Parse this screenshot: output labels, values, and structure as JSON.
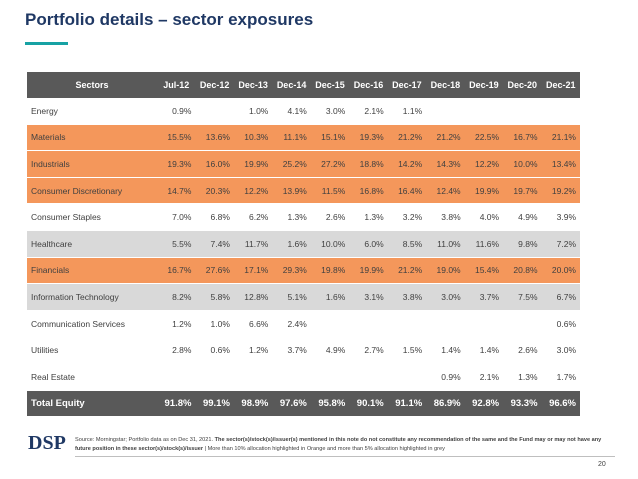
{
  "header": {
    "title": "Portfolio details – sector exposures"
  },
  "table": {
    "columns": [
      "Sectors",
      "Jul-12",
      "Dec-12",
      "Dec-13",
      "Dec-14",
      "Dec-15",
      "Dec-16",
      "Dec-17",
      "Dec-18",
      "Dec-19",
      "Dec-20",
      "Dec-21"
    ],
    "rows": [
      {
        "label": "Energy",
        "fill": "#ffffff",
        "values": [
          "0.9%",
          null,
          "1.0%",
          "4.1%",
          "3.0%",
          "2.1%",
          "1.1%",
          null,
          null,
          null,
          null
        ]
      },
      {
        "label": "Materials",
        "fill": "#f4975b",
        "values": [
          "15.5%",
          "13.6%",
          "10.3%",
          "11.1%",
          "15.1%",
          "19.3%",
          "21.2%",
          "21.2%",
          "22.5%",
          "16.7%",
          "21.1%"
        ]
      },
      {
        "label": "Industrials",
        "fill": "#f4975b",
        "values": [
          "19.3%",
          "16.0%",
          "19.9%",
          "25.2%",
          "27.2%",
          "18.8%",
          "14.2%",
          "14.3%",
          "12.2%",
          "10.0%",
          "13.4%"
        ]
      },
      {
        "label": "Consumer Discretionary",
        "fill": "#f4975b",
        "values": [
          "14.7%",
          "20.3%",
          "12.2%",
          "13.9%",
          "11.5%",
          "16.8%",
          "16.4%",
          "12.4%",
          "19.9%",
          "19.7%",
          "19.2%"
        ]
      },
      {
        "label": "Consumer Staples",
        "fill": "#ffffff",
        "values": [
          "7.0%",
          "6.8%",
          "6.2%",
          "1.3%",
          "2.6%",
          "1.3%",
          "3.2%",
          "3.8%",
          "4.0%",
          "4.9%",
          "3.9%"
        ]
      },
      {
        "label": "Healthcare",
        "fill": "#d9d9d9",
        "values": [
          "5.5%",
          "7.4%",
          "11.7%",
          "1.6%",
          "10.0%",
          "6.0%",
          "8.5%",
          "11.0%",
          "11.6%",
          "9.8%",
          "7.2%"
        ]
      },
      {
        "label": "Financials",
        "fill": "#f4975b",
        "values": [
          "16.7%",
          "27.6%",
          "17.1%",
          "29.3%",
          "19.8%",
          "19.9%",
          "21.2%",
          "19.0%",
          "15.4%",
          "20.8%",
          "20.0%"
        ]
      },
      {
        "label": "Information Technology",
        "fill": "#d9d9d9",
        "values": [
          "8.2%",
          "5.8%",
          "12.8%",
          "5.1%",
          "1.6%",
          "3.1%",
          "3.8%",
          "3.0%",
          "3.7%",
          "7.5%",
          "6.7%"
        ]
      },
      {
        "label": "Communication Services",
        "fill": "#ffffff",
        "values": [
          "1.2%",
          "1.0%",
          "6.6%",
          "2.4%",
          null,
          null,
          null,
          null,
          null,
          null,
          "0.6%"
        ]
      },
      {
        "label": "Utilities",
        "fill": "#ffffff",
        "values": [
          "2.8%",
          "0.6%",
          "1.2%",
          "3.7%",
          "4.9%",
          "2.7%",
          "1.5%",
          "1.4%",
          "1.4%",
          "2.6%",
          "3.0%"
        ]
      },
      {
        "label": "Real Estate",
        "fill": "#ffffff",
        "values": [
          null,
          null,
          null,
          null,
          null,
          null,
          null,
          "0.9%",
          "2.1%",
          "1.3%",
          "1.7%"
        ]
      }
    ],
    "total": {
      "label": "Total  Equity",
      "values": [
        "91.8%",
        "99.1%",
        "98.9%",
        "97.6%",
        "95.8%",
        "90.1%",
        "91.1%",
        "86.9%",
        "92.8%",
        "93.3%",
        "96.6%"
      ]
    }
  },
  "footer": {
    "logo": "DSP",
    "source_prefix": "Source: Morningstar; Portfolio data as on Dec 31, 2021. ",
    "source_bold": "The sector(s)/stock(s)/issuer(s) mentioned in this note do not constitute any recommendation of the same and the Fund may or may not have any future position in these sector(s)/stock(s)/issuer",
    "source_suffix": " | More than 10% allocation highlighted in Orange and more than 5% allocation highlighted in grey",
    "page": "20"
  }
}
